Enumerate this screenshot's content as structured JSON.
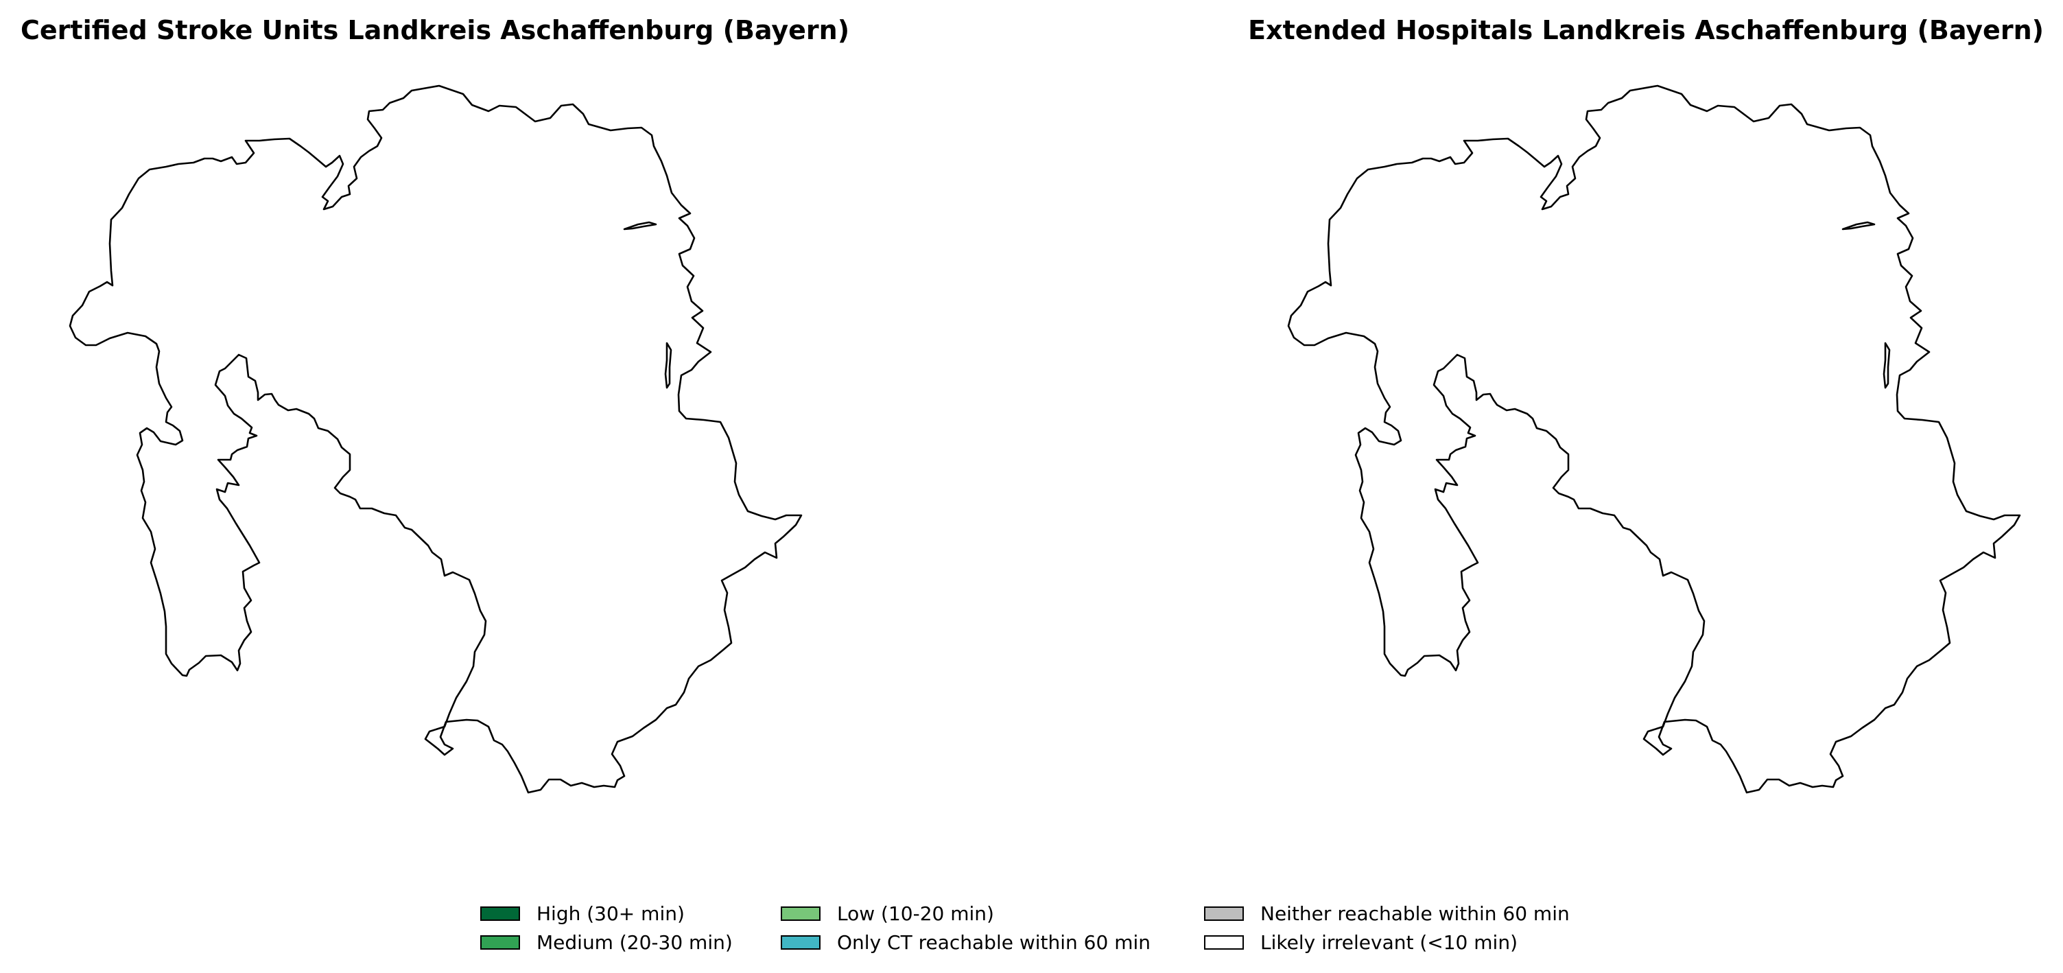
{
  "panels": [
    {
      "title": "Certified Stroke Units Landkreis Aschaffenburg (Bayern)"
    },
    {
      "title": "Extended Hospitals Landkreis Aschaffenburg (Bayern)"
    }
  ],
  "map": {
    "region": "Landkreis Aschaffenburg (Bayern)",
    "fill_color": "#ffffff",
    "outline_color": "#000000"
  },
  "legend": {
    "items": [
      {
        "label": "High (30+ min)",
        "color": "#006837"
      },
      {
        "label": "Medium (20-30 min)",
        "color": "#31a354"
      },
      {
        "label": "Low (10-20 min)",
        "color": "#78c679"
      },
      {
        "label": "Only CT reachable within 60 min",
        "color": "#41b6c4"
      },
      {
        "label": "Neither reachable within 60 min",
        "color": "#bdbdbd"
      },
      {
        "label": "Likely irrelevant (<10 min)",
        "color": "#ffffff"
      }
    ]
  }
}
